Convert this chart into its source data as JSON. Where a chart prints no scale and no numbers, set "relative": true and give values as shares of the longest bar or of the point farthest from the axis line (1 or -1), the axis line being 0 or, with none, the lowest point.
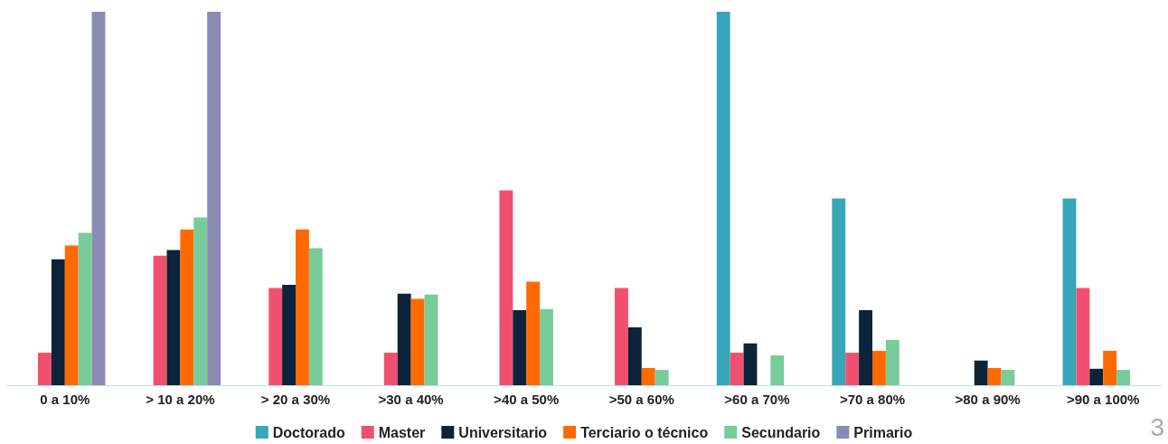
{
  "chart_data": {
    "type": "bar",
    "relative": true,
    "legend": "bottom",
    "categories": [
      "0 a 10%",
      "> 10 a 20%",
      "> 20 a 30%",
      ">30 a 40%",
      ">40 a 50%",
      ">50 a 60%",
      ">60 a 70%",
      ">70 a 80%",
      ">80 a 90%",
      ">90 a 100%"
    ],
    "series": [
      {
        "name": "Doctorado",
        "color": "#36a6b8",
        "values": [
          null,
          null,
          null,
          null,
          null,
          null,
          1,
          0.5,
          null,
          0.5
        ]
      },
      {
        "name": "Master",
        "color": "#f0506e",
        "values": [
          0.087,
          0.347,
          0.26,
          0.087,
          0.522,
          0.26,
          0.087,
          0.087,
          null,
          0.26
        ]
      },
      {
        "name": "Universitario",
        "color": "#0c2339",
        "values": [
          0.337,
          0.362,
          0.269,
          0.245,
          0.201,
          0.155,
          0.112,
          0.201,
          0.066,
          0.044
        ]
      },
      {
        "name": "Terciario o técnico",
        "color": "#ff6a00",
        "values": [
          0.374,
          0.417,
          0.417,
          0.231,
          0.277,
          0.046,
          null,
          0.092,
          0.046,
          0.092
        ]
      },
      {
        "name": "Secundario",
        "color": "#78cc9a",
        "values": [
          0.408,
          0.449,
          0.367,
          0.243,
          0.204,
          0.041,
          0.08,
          0.121,
          0.041,
          0.041
        ]
      },
      {
        "name": "Primario",
        "color": "#8b8ab3",
        "values": [
          1,
          1,
          null,
          null,
          null,
          null,
          null,
          null,
          null,
          null
        ]
      }
    ],
    "annotations": [
      "3"
    ]
  }
}
